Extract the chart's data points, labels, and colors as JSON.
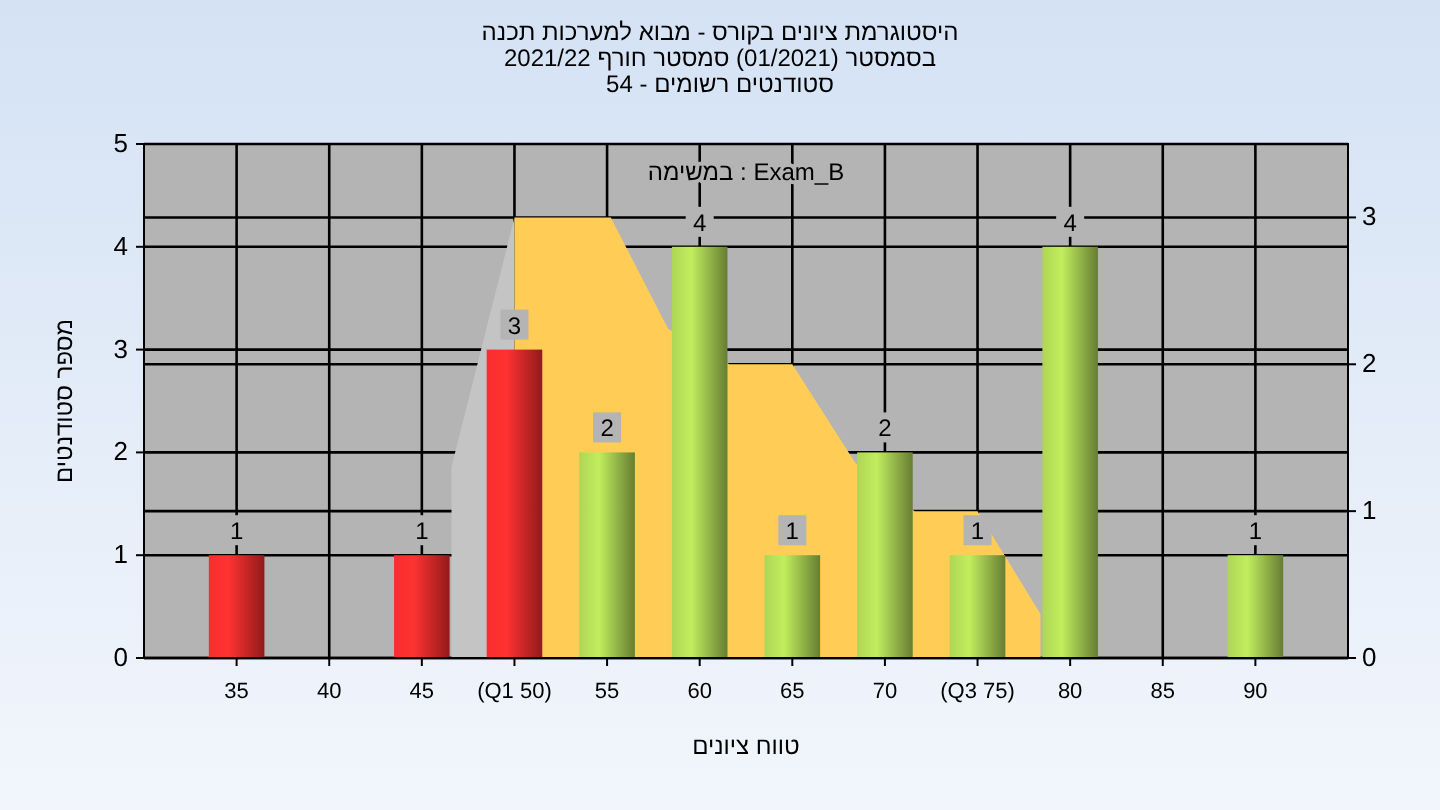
{
  "chart_data": {
    "type": "bar",
    "title": "היסטוגרמת ציונים בקורס - מבוא למערכות תכנה",
    "subtitle": "בסמסטר  (01/2021)  סמסטר חורף 2021/22\nסטודנטים רשומים - 54",
    "xlabel": "טווח ציונים",
    "ylabel": "מספר סטודנטים",
    "annotations": [
      "במשימה : Exam_B"
    ],
    "xlim": [
      30,
      95
    ],
    "xticks": [
      35,
      40,
      45,
      {
        "value": 50,
        "label": "(Q1 50)"
      },
      55,
      60,
      65,
      70,
      {
        "value": 75,
        "label": "(Q3 75)"
      },
      80,
      85,
      90
    ],
    "ylim": [
      0,
      5
    ],
    "yticks": [
      0,
      1,
      2,
      3,
      4,
      5
    ],
    "y2lim": [
      0,
      3.5
    ],
    "y2ticks": [
      0,
      1,
      2,
      3
    ],
    "grid": true,
    "series": [
      {
        "type": "area",
        "axis": "y2",
        "color": "#c4c4c4",
        "x": [
          46.6,
          50
        ],
        "values": [
          1.3,
          3
        ]
      },
      {
        "type": "area",
        "axis": "y2",
        "color": "#ffcc55",
        "x": [
          50,
          55.2,
          58.3,
          61.6,
          65,
          68.4,
          71.6,
          75,
          78.4
        ],
        "values": [
          3,
          3,
          2.24,
          2,
          2,
          1.33,
          1,
          1,
          0.3
        ]
      },
      {
        "x": [
          35,
          45,
          50,
          55,
          60,
          65,
          70,
          75,
          80,
          90
        ],
        "values": [
          1,
          1,
          3,
          2,
          4,
          1,
          2,
          1,
          4,
          1
        ],
        "colors": [
          "#e02828",
          "#e02828",
          "#e02828",
          "#9cc04c",
          "#9cc04c",
          "#9cc04c",
          "#9cc04c",
          "#9cc04c",
          "#9cc04c",
          "#9cc04c"
        ],
        "value_labels": [
          "1",
          "1",
          "3",
          "2",
          "4",
          "1",
          "2",
          "1",
          "4",
          "1"
        ]
      }
    ]
  }
}
